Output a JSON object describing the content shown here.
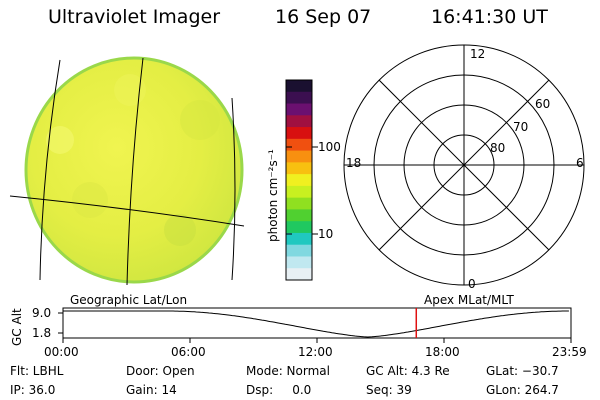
{
  "header": {
    "instrument": "Ultraviolet Imager",
    "date": "16 Sep 07",
    "time": "16:41:30 UT"
  },
  "colorbar": {
    "unit_label": "photon cm⁻²s⁻¹",
    "ticks": [
      {
        "label": "100",
        "value": 100
      },
      {
        "label": "10",
        "value": 10
      }
    ],
    "colors": [
      "#1a1030",
      "#3b0f50",
      "#6b1070",
      "#a01040",
      "#d81010",
      "#f05010",
      "#f89010",
      "#f8c010",
      "#f0f020",
      "#c8f020",
      "#90e020",
      "#50d030",
      "#20c860",
      "#20c8c0",
      "#80d8e0",
      "#c0e8f0",
      "#e8f0f4"
    ]
  },
  "left_panel": {
    "label": "Geographic Lat/Lon",
    "disk_fill": "#e6f046",
    "disk_edge": "#9ad84a"
  },
  "right_panel": {
    "label": "Apex  MLat/MLT",
    "mlt_labels": {
      "top": "12",
      "bottom": "0",
      "left": "18",
      "right": "6"
    },
    "mlat_labels": [
      "60",
      "70",
      "80"
    ]
  },
  "altitude_plot": {
    "ylabel": "GC Alt",
    "yticks": [
      "9.0",
      "1.8"
    ],
    "xticks": [
      "00:00",
      "06:00",
      "12:00",
      "18:00",
      "23:59"
    ],
    "marker_time_hours": 16.69,
    "marker_color": "#e01010",
    "perigee_time_hours": 14.4
  },
  "footer": {
    "filter": "Flt: LBHL",
    "ip": "IP: 36.0",
    "door": "Door: Open",
    "gain": "Gain: 14",
    "mode": "Mode: Normal",
    "dsp": "Dsp:     0.0",
    "gc_alt": "GC Alt: 4.3 Re",
    "seq": "Seq: 39",
    "glat": "GLat: −30.7",
    "glon": "GLon: 264.7"
  }
}
